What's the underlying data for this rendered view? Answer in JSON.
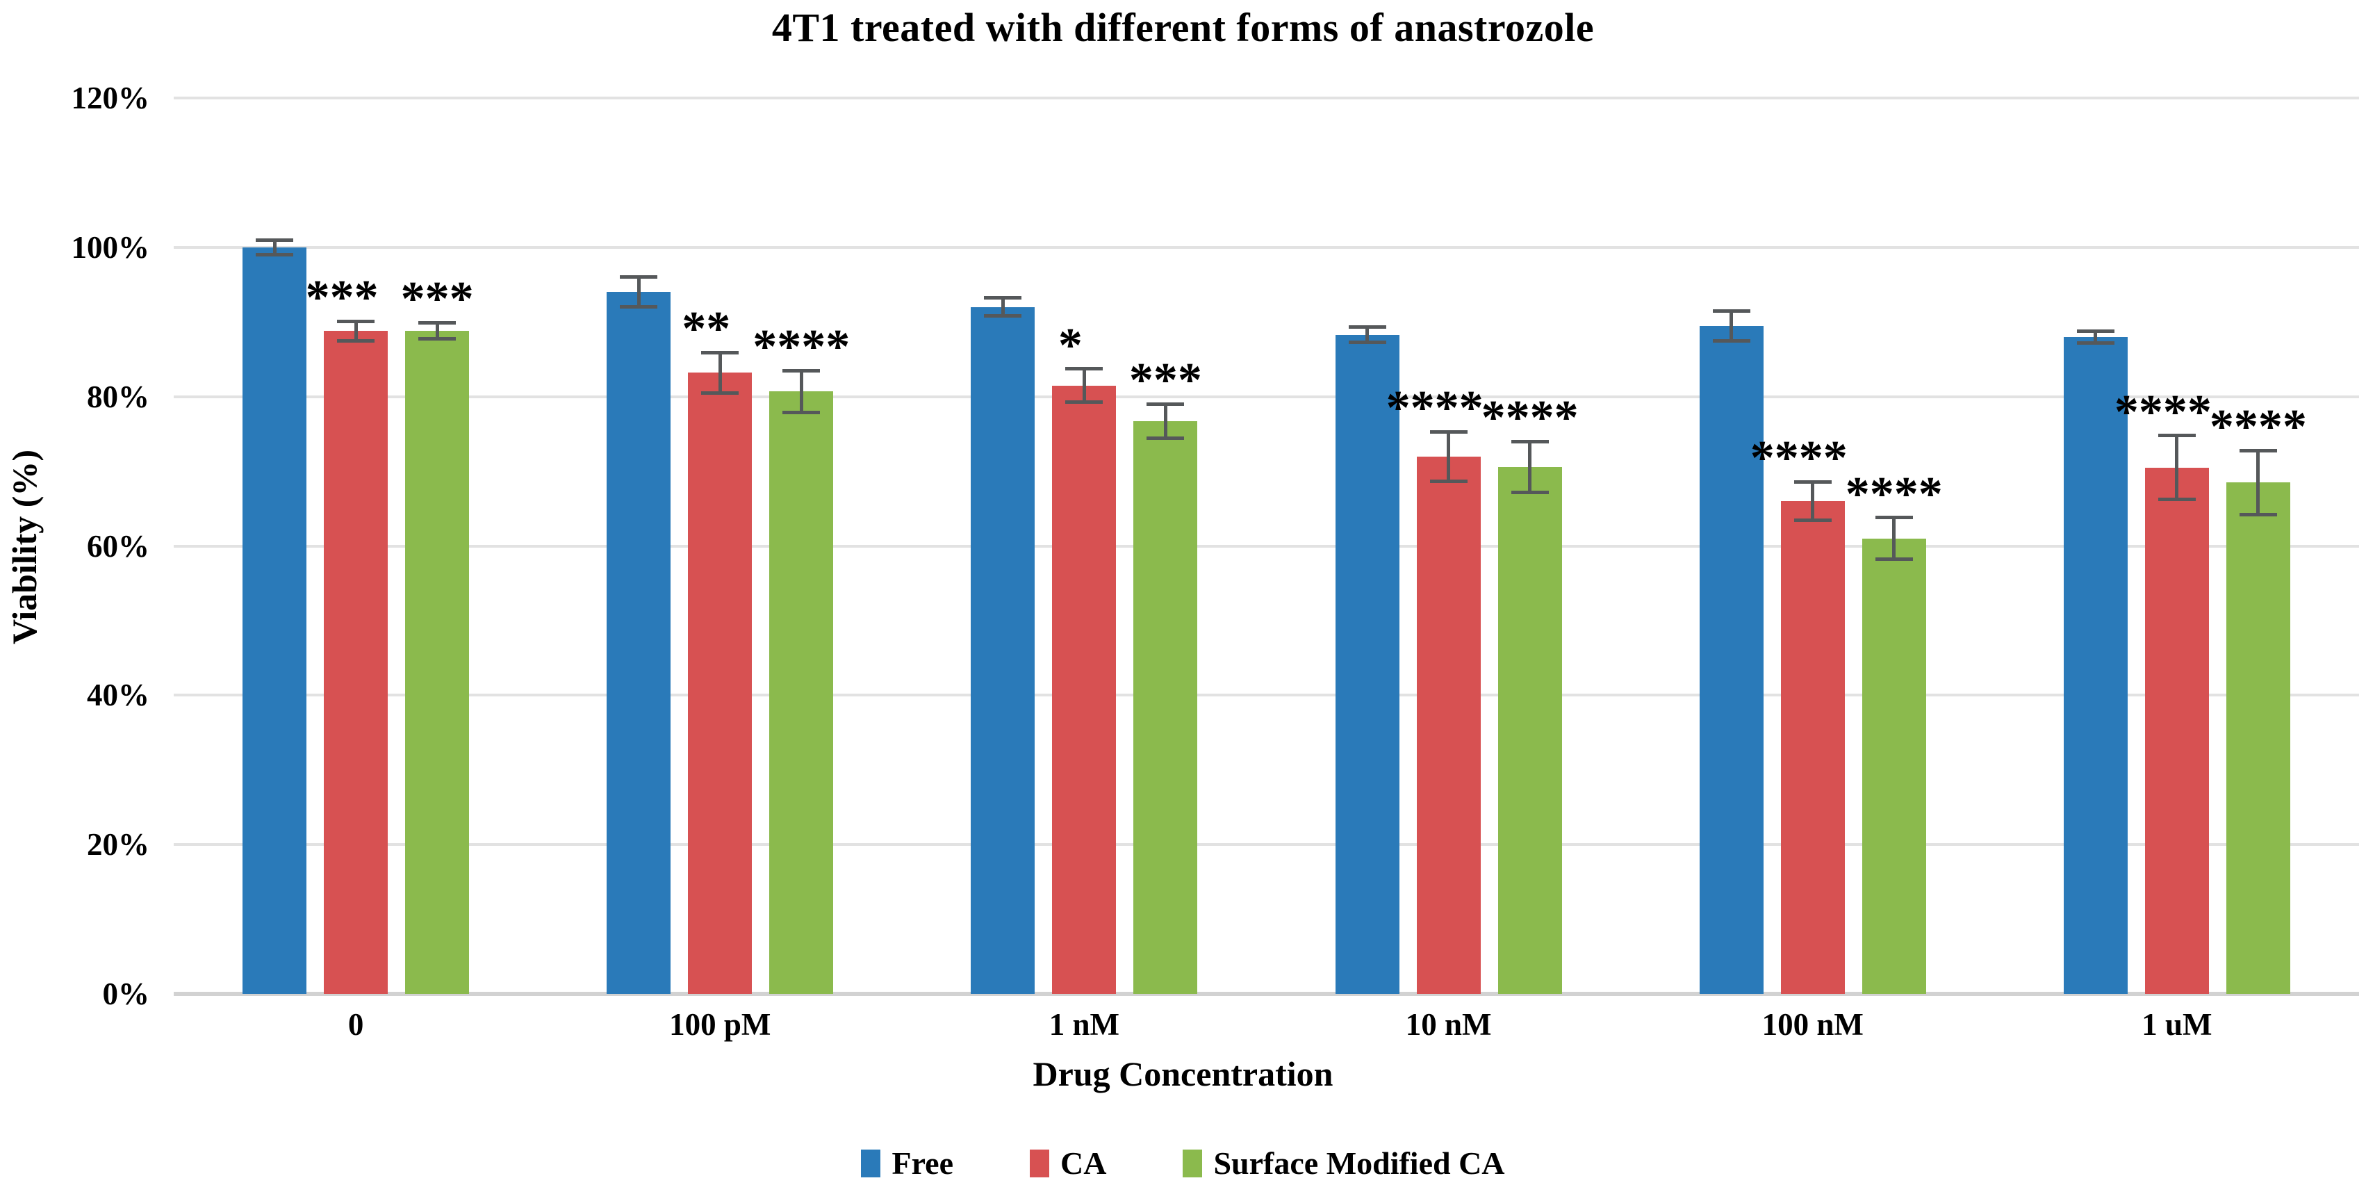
{
  "page": {
    "background": "#FFFFFF"
  },
  "chart_data": {
    "type": "bar",
    "title": "4T1 treated with different forms of anastrozole",
    "xlabel": "Drug Concentration",
    "ylabel": "Viability (%)",
    "ylim": [
      0,
      120
    ],
    "grid": true,
    "legend_position": "bottom",
    "categories": [
      "0",
      "100 pM",
      "1 nM",
      "10 nM",
      "100 nM",
      "1 uM"
    ],
    "y_ticks": [
      {
        "label": "120%",
        "value": 120
      },
      {
        "label": "100%",
        "value": 100
      },
      {
        "label": "80%",
        "value": 80
      },
      {
        "label": "60%",
        "value": 60
      },
      {
        "label": "40%",
        "value": 40
      },
      {
        "label": "20%",
        "value": 20
      },
      {
        "label": "0%",
        "value": 0
      }
    ],
    "series": [
      {
        "name": "Free",
        "color": "#2A7AB9",
        "values": [
          100,
          94,
          92,
          88.3,
          89.5,
          88
        ],
        "errors": [
          1,
          2,
          1.2,
          1,
          2,
          0.8
        ],
        "significance": [
          "",
          "",
          "",
          "",
          "",
          ""
        ]
      },
      {
        "name": "CA",
        "color": "#D75152",
        "values": [
          88.8,
          83.2,
          81.5,
          72,
          66,
          70.5
        ],
        "errors": [
          1.3,
          2.7,
          2.2,
          3.3,
          2.6,
          4.3
        ],
        "significance": [
          "***",
          "**",
          "*",
          "****",
          "****",
          "****"
        ]
      },
      {
        "name": "Surface Modified CA",
        "color": "#8BBA4D",
        "values": [
          88.8,
          80.7,
          76.7,
          70.6,
          61,
          68.5
        ],
        "errors": [
          1.1,
          2.8,
          2.3,
          3.4,
          2.8,
          4.3
        ],
        "significance": [
          "***",
          "****",
          "***",
          "****",
          "****",
          "****"
        ]
      }
    ],
    "style": {
      "grid_color": "#E2E2E2",
      "axis_line_color": "#D2D2D2",
      "error_bar_color": "#55585A",
      "significance_color": "#000000",
      "text_color": "#000000"
    }
  }
}
